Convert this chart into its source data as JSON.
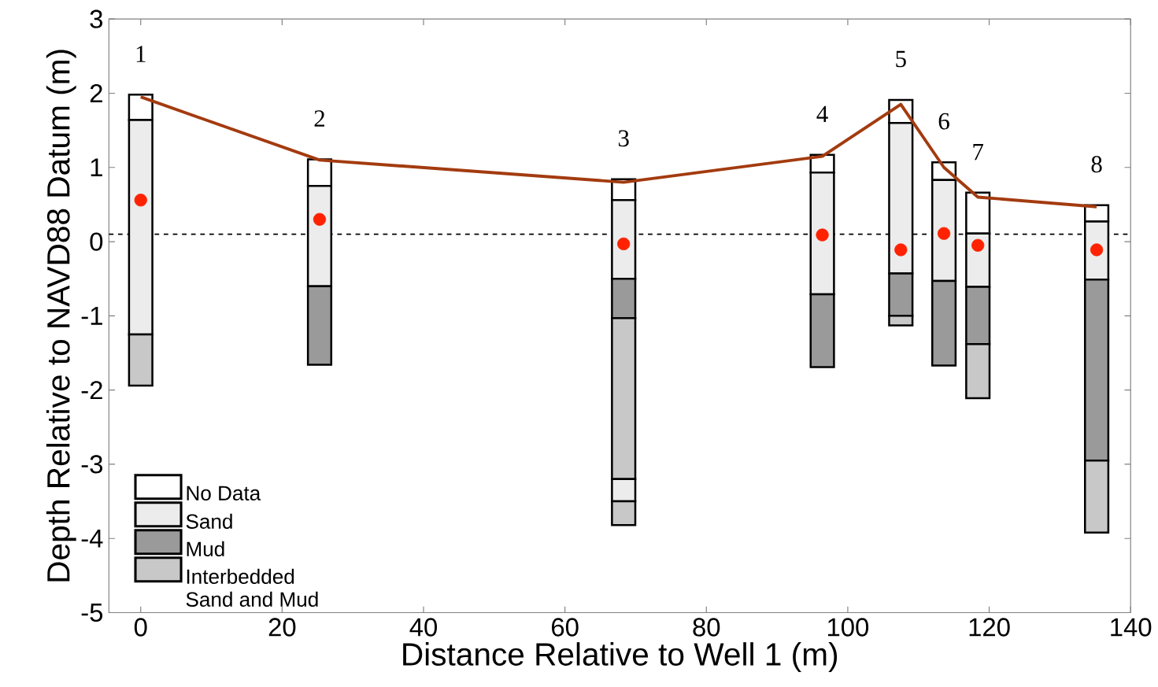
{
  "chart_data": {
    "type": "bar",
    "xlabel": "Distance Relative to Well 1 (m)",
    "ylabel": "Depth Relative to NAVD88 Datum (m)",
    "xlim": [
      -4.5,
      140
    ],
    "xticks": [
      0,
      20,
      40,
      60,
      80,
      100,
      120,
      140
    ],
    "ylim": [
      -5,
      3
    ],
    "yticks": [
      -5,
      -4,
      -3,
      -2,
      -1,
      0,
      1,
      2,
      3
    ],
    "legend": "bottom left",
    "series": [
      {
        "name": "No Data",
        "color": "#ffffff",
        "x": [
          0,
          25.3,
          68.3,
          96.4,
          107.5,
          113.6,
          118.4,
          135.2
        ],
        "base": [
          1.64,
          0.75,
          0.56,
          0.93,
          1.6,
          0.83,
          0.11,
          0.27
        ],
        "values": [
          0.34,
          0.36,
          0.28,
          0.24,
          0.31,
          0.24,
          0.55,
          0.22
        ]
      },
      {
        "name": "Sand",
        "color": "#ececec",
        "x": [
          0,
          25.3,
          68.3,
          96.4,
          107.5,
          113.6,
          118.4,
          135.2
        ],
        "base": [
          -1.25,
          -0.6,
          -0.5,
          -0.71,
          -0.43,
          -0.53,
          -0.61,
          -0.51
        ],
        "values": [
          2.89,
          1.35,
          1.06,
          1.64,
          2.03,
          1.36,
          0.72,
          0.78
        ]
      },
      {
        "name": "Mud",
        "color": "#9a9a9a",
        "x": [
          25.3,
          68.3,
          96.4,
          107.5,
          113.6,
          118.4,
          135.2
        ],
        "base": [
          -1.66,
          -1.03,
          -1.69,
          -1.0,
          -1.67,
          -1.38,
          -2.95
        ],
        "values": [
          1.06,
          0.53,
          0.98,
          0.57,
          1.14,
          0.77,
          2.44
        ]
      },
      {
        "name": "Interbedded Sand and Mud",
        "color": "#c8c8c8",
        "x": [
          0,
          68.3,
          107.5,
          118.4,
          135.2
        ],
        "base": [
          -1.94,
          -3.2,
          -1.13,
          -2.11,
          -3.92
        ],
        "values": [
          0.69,
          2.17,
          0.13,
          0.73,
          0.97
        ]
      },
      {
        "color": "#ececec",
        "x": [
          68.3
        ],
        "base": [
          -3.5
        ],
        "values": [
          0.3
        ]
      },
      {
        "color": "#c8c8c8",
        "x": [
          68.3
        ],
        "base": [
          -3.82
        ],
        "values": [
          0.32
        ]
      },
      {
        "type": "line",
        "color": "#a33b0f",
        "marker": "none",
        "line_style": "solid",
        "x": [
          0,
          25.3,
          68.3,
          96.4,
          107.5,
          113.6,
          118.4,
          135.2
        ],
        "values": [
          1.95,
          1.1,
          0.8,
          1.15,
          1.85,
          1.0,
          0.6,
          0.47
        ]
      },
      {
        "type": "scatter",
        "color": "#ff2200",
        "marker": "circle",
        "x": [
          0,
          25.3,
          68.3,
          96.4,
          107.5,
          113.6,
          118.4,
          135.2
        ],
        "values": [
          0.56,
          0.3,
          -0.03,
          0.09,
          -0.11,
          0.11,
          -0.05,
          -0.11
        ]
      }
    ],
    "ref_lines": [
      {
        "axis": "y",
        "value": 0.1,
        "color": "#000000",
        "line_style": "dashed"
      }
    ],
    "annotations": [
      "1",
      "2",
      "3",
      "4",
      "5",
      "6",
      "7",
      "8"
    ]
  }
}
